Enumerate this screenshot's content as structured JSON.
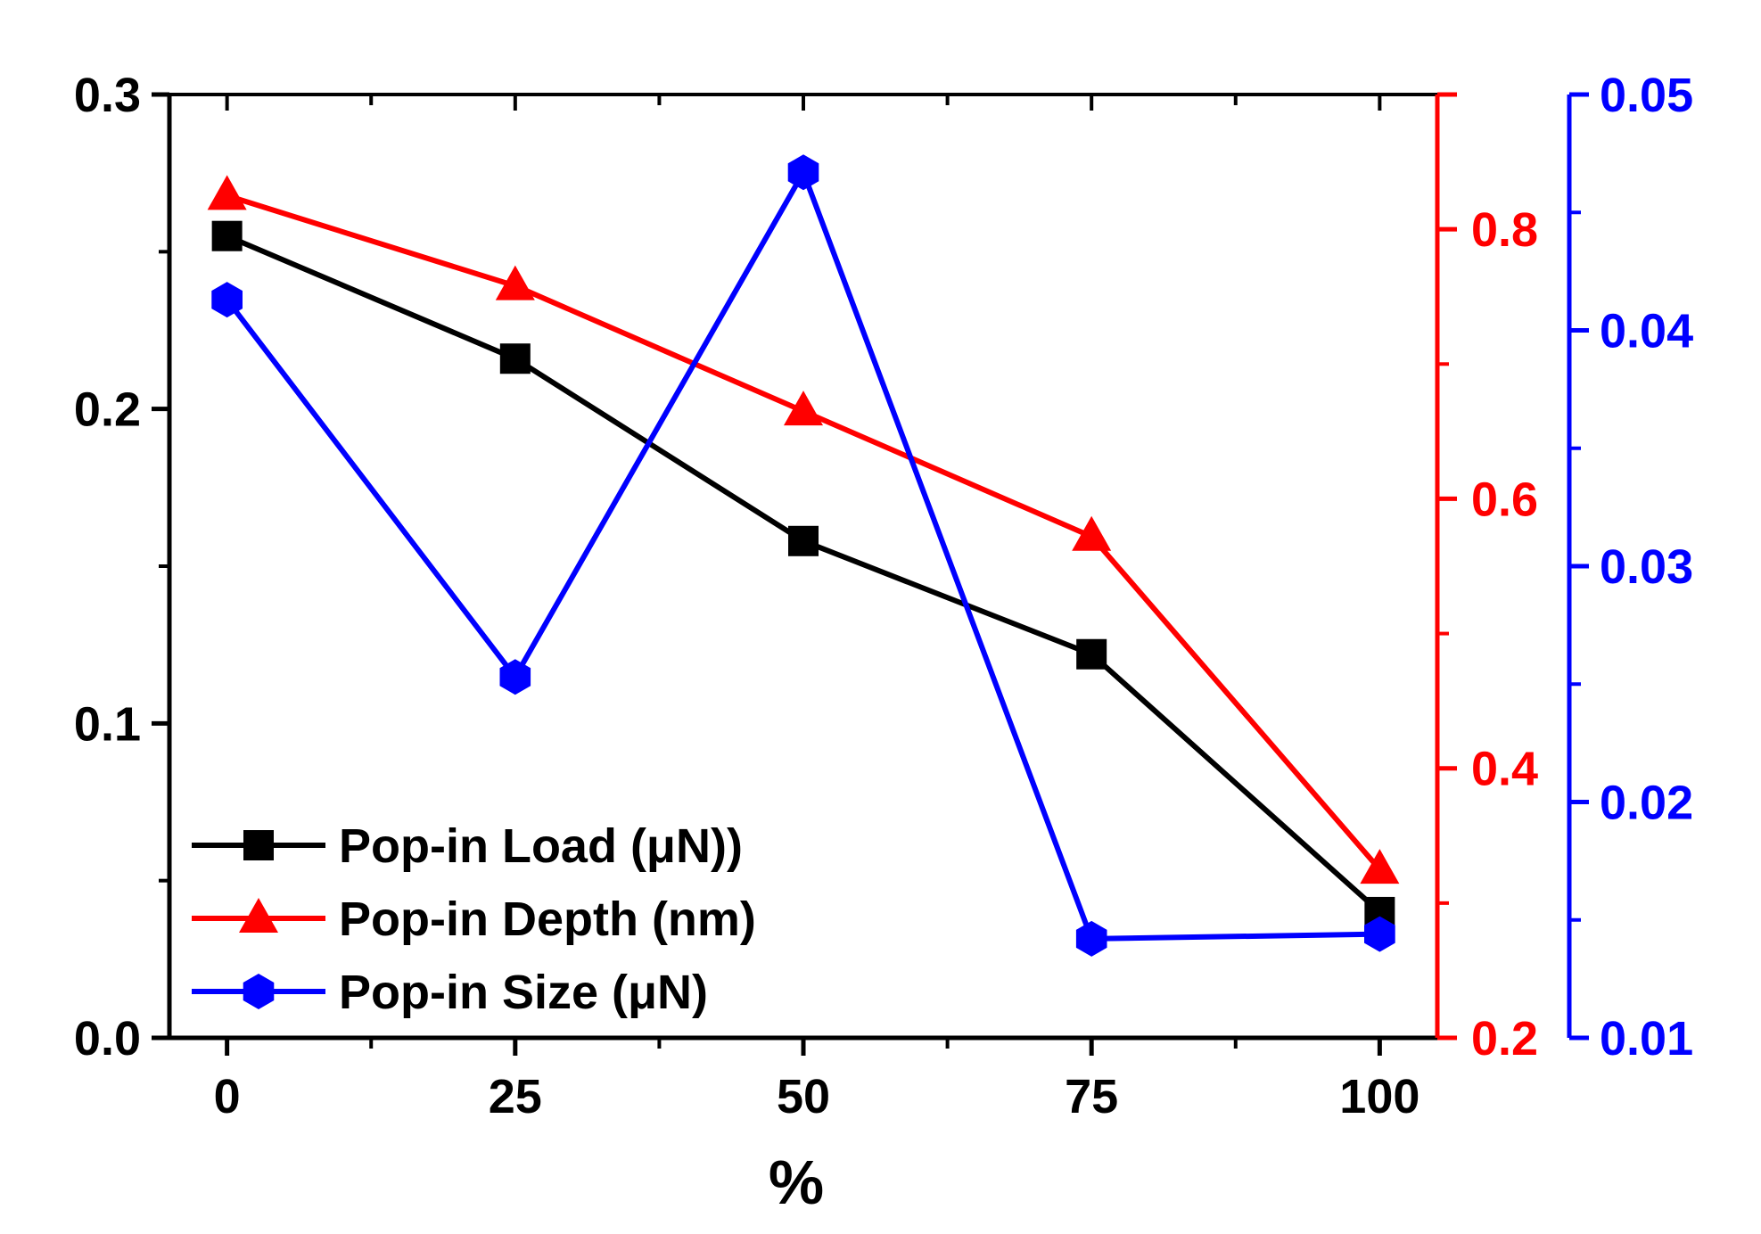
{
  "chart_data": {
    "type": "line",
    "x": [
      0,
      25,
      50,
      75,
      100
    ],
    "xlabel": "%",
    "xlim": [
      -5,
      105
    ],
    "x_ticks": [
      "0",
      "25",
      "50",
      "75",
      "100"
    ],
    "axes": {
      "left": {
        "min": 0.0,
        "max": 0.3,
        "ticks": [
          "0.0",
          "0.1",
          "0.2",
          "0.3"
        ],
        "color": "#000000"
      },
      "right": {
        "min": 0.2,
        "max": 0.9,
        "ticks": [
          "0.2",
          "0.4",
          "0.6",
          "0.8"
        ],
        "color": "#ff0000"
      },
      "far_right": {
        "min": 0.01,
        "max": 0.05,
        "ticks": [
          "0.01",
          "0.02",
          "0.03",
          "0.04",
          "0.05"
        ],
        "color": "#0000ff"
      }
    },
    "series": [
      {
        "name": "Pop-in Load (μN))",
        "axis": "left",
        "color": "#000000",
        "marker": "square",
        "values": [
          0.255,
          0.216,
          0.158,
          0.122,
          0.04
        ]
      },
      {
        "name": "Pop-in Depth (nm)",
        "axis": "right",
        "color": "#ff0000",
        "marker": "triangle",
        "values": [
          0.825,
          0.758,
          0.665,
          0.572,
          0.325
        ]
      },
      {
        "name": "Pop-in Size (μN)",
        "axis": "far_right",
        "color": "#0000ff",
        "marker": "hexagon",
        "values": [
          0.0413,
          0.0253,
          0.0467,
          0.0142,
          0.0144
        ]
      }
    ],
    "legend_position": "bottom-left"
  }
}
